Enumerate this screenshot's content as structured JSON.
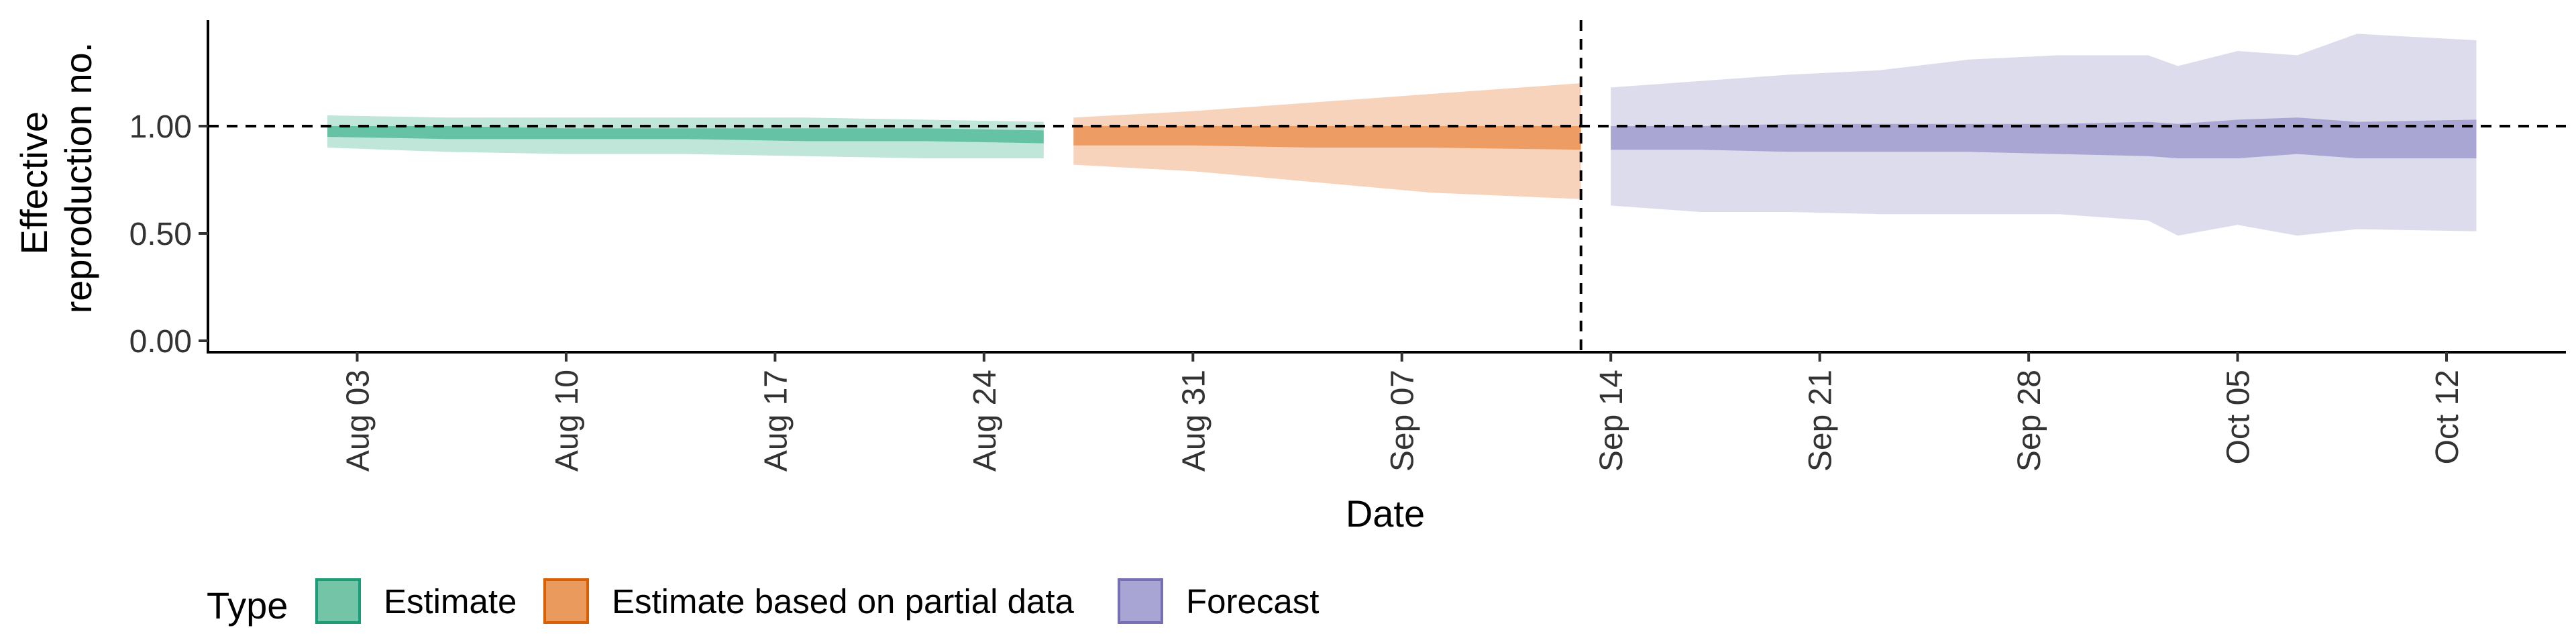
{
  "chart_data": {
    "type": "area",
    "xlabel": "Date",
    "ylabel_lines": [
      "Effective",
      "reproduction no."
    ],
    "ylim": [
      0,
      1.5
    ],
    "y_ticks": [
      {
        "value": 0,
        "label": "0.00"
      },
      {
        "value": 0.5,
        "label": "0.50"
      },
      {
        "value": 1,
        "label": "1.00"
      }
    ],
    "x_range": [
      "2021-07-29",
      "2021-10-16"
    ],
    "x_ticks": [
      {
        "date": "2021-08-03",
        "label": "Aug 03"
      },
      {
        "date": "2021-08-10",
        "label": "Aug 10"
      },
      {
        "date": "2021-08-17",
        "label": "Aug 17"
      },
      {
        "date": "2021-08-24",
        "label": "Aug 24"
      },
      {
        "date": "2021-08-31",
        "label": "Aug 31"
      },
      {
        "date": "2021-09-07",
        "label": "Sep 07"
      },
      {
        "date": "2021-09-14",
        "label": "Sep 14"
      },
      {
        "date": "2021-09-21",
        "label": "Sep 21"
      },
      {
        "date": "2021-09-28",
        "label": "Sep 28"
      },
      {
        "date": "2021-10-05",
        "label": "Oct 05"
      },
      {
        "date": "2021-10-12",
        "label": "Oct 12"
      }
    ],
    "reference_hline": 1.0,
    "reference_vline": "2021-09-13",
    "grid": false,
    "legend": {
      "title": "Type",
      "position": "bottom-left",
      "entries": [
        {
          "label": "Estimate",
          "fill": "#74c4a8",
          "border": "#1b9e77"
        },
        {
          "label": "Estimate based on partial data",
          "fill": "#e99a5c",
          "border": "#d95f02"
        },
        {
          "label": "Forecast",
          "fill": "#a8a5d4",
          "border": "#7570b3"
        }
      ]
    },
    "series": [
      {
        "name": "Estimate",
        "outer_color": "#bfe6d8",
        "inner_color": "#66c2a5",
        "x": [
          "2021-08-02",
          "2021-08-06",
          "2021-08-10",
          "2021-08-14",
          "2021-08-18",
          "2021-08-22",
          "2021-08-26"
        ],
        "outer_lower": [
          0.9,
          0.88,
          0.87,
          0.87,
          0.86,
          0.85,
          0.85
        ],
        "outer_upper": [
          1.05,
          1.04,
          1.04,
          1.04,
          1.04,
          1.03,
          1.02
        ],
        "inner_lower": [
          0.95,
          0.94,
          0.94,
          0.94,
          0.93,
          0.93,
          0.92
        ],
        "inner_upper": [
          1.0,
          1.0,
          0.99,
          0.99,
          0.99,
          0.99,
          0.98
        ]
      },
      {
        "name": "Estimate based on partial data",
        "outer_color": "#f7d3bb",
        "inner_color": "#ed9c63",
        "x": [
          "2021-08-27",
          "2021-08-31",
          "2021-09-04",
          "2021-09-08",
          "2021-09-13"
        ],
        "outer_lower": [
          0.82,
          0.79,
          0.74,
          0.69,
          0.66
        ],
        "outer_upper": [
          1.04,
          1.07,
          1.11,
          1.15,
          1.2
        ],
        "inner_lower": [
          0.91,
          0.91,
          0.9,
          0.9,
          0.89
        ],
        "inner_upper": [
          1.0,
          1.0,
          1.0,
          1.0,
          1.0
        ]
      },
      {
        "name": "Forecast",
        "outer_color": "#dddcec",
        "inner_color": "#a9a6d4",
        "x": [
          "2021-09-14",
          "2021-09-17",
          "2021-09-20",
          "2021-09-23",
          "2021-09-26",
          "2021-09-29",
          "2021-10-02",
          "2021-10-03",
          "2021-10-05",
          "2021-10-07",
          "2021-10-09",
          "2021-10-13"
        ],
        "outer_lower": [
          0.63,
          0.6,
          0.6,
          0.59,
          0.59,
          0.59,
          0.56,
          0.49,
          0.54,
          0.49,
          0.52,
          0.51
        ],
        "outer_upper": [
          1.18,
          1.21,
          1.24,
          1.26,
          1.31,
          1.33,
          1.33,
          1.28,
          1.35,
          1.33,
          1.43,
          1.4
        ],
        "inner_lower": [
          0.89,
          0.89,
          0.88,
          0.88,
          0.88,
          0.87,
          0.86,
          0.85,
          0.85,
          0.87,
          0.85,
          0.85
        ],
        "inner_upper": [
          1.0,
          1.0,
          1.01,
          1.01,
          1.01,
          1.01,
          1.02,
          1.01,
          1.03,
          1.04,
          1.02,
          1.03
        ]
      }
    ]
  }
}
